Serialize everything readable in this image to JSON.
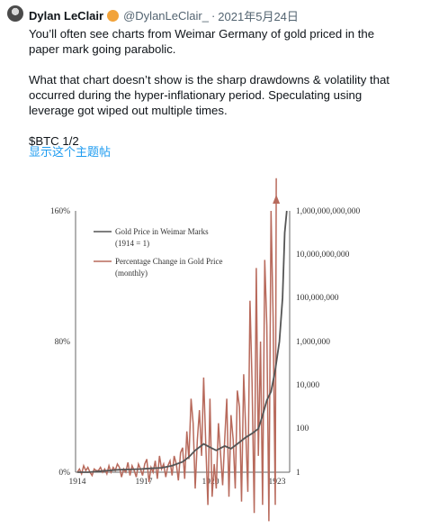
{
  "author": {
    "name": "Dylan LeClair",
    "handle": "@DylanLeClair_",
    "separator": "·",
    "date": "2021年5月24日",
    "badge_color": "#f2a33a"
  },
  "tweet": {
    "paragraphs": [
      "You’ll often see charts from Weimar Germany of gold priced in the paper mark going parabolic.",
      "What that chart doesn’t show is the sharp drawdowns & volatility that occurred during the hyper-inflationary period. Speculating using leverage got wiped out multiple times.",
      "$BTC 1/2"
    ],
    "translate_label": "显示这个主题帖"
  },
  "chart_data": {
    "type": "line",
    "left_axis": {
      "ticks": [
        "0%",
        "80%",
        "160%"
      ],
      "range": [
        0,
        160
      ]
    },
    "right_axis": {
      "scale": "log",
      "ticks": [
        "1",
        "100",
        "10,000",
        "1,000,000",
        "100,000,000",
        "10,000,000,000",
        "1,000,000,000,000"
      ]
    },
    "x_ticks": [
      "1914",
      "1917",
      "1920",
      "1923"
    ],
    "legend_position": "top-left",
    "series": [
      {
        "name": "Gold Price in Weimar Marks",
        "name_line2": "(1914 = 1)",
        "color": "#555555",
        "axis": "right",
        "x": [
          1914,
          1914.5,
          1915,
          1915.5,
          1916,
          1916.5,
          1917,
          1917.5,
          1918,
          1918.5,
          1919,
          1919.3,
          1919.6,
          1920,
          1920.3,
          1920.6,
          1921,
          1921.3,
          1921.6,
          1922,
          1922.3,
          1922.6,
          1922.8,
          1923,
          1923.2,
          1923.4,
          1923.6,
          1923.75,
          1923.85,
          1923.95
        ],
        "values": [
          1,
          1,
          1.1,
          1.2,
          1.3,
          1.35,
          1.4,
          1.5,
          1.6,
          2,
          3,
          5,
          10,
          20,
          14,
          10,
          16,
          12,
          20,
          40,
          60,
          100,
          400,
          2000,
          5000,
          50000,
          1000000,
          100000000,
          100000000000,
          1000000000000
        ]
      },
      {
        "name": "Percentage Change in Gold Price",
        "name_line2": "(monthly)",
        "color": "#b86a5c",
        "axis": "left",
        "x": [
          1914,
          1914.1,
          1914.2,
          1914.3,
          1914.4,
          1914.5,
          1914.6,
          1914.7,
          1914.8,
          1914.9,
          1915,
          1915.1,
          1915.2,
          1915.3,
          1915.4,
          1915.5,
          1915.6,
          1915.7,
          1915.8,
          1915.9,
          1916,
          1916.1,
          1916.2,
          1916.3,
          1916.4,
          1916.5,
          1916.6,
          1916.7,
          1916.8,
          1916.9,
          1917,
          1917.1,
          1917.2,
          1917.3,
          1917.4,
          1917.5,
          1917.6,
          1917.7,
          1917.8,
          1917.9,
          1918,
          1918.1,
          1918.2,
          1918.3,
          1918.4,
          1918.5,
          1918.6,
          1918.7,
          1918.8,
          1918.9,
          1919,
          1919.1,
          1919.2,
          1919.3,
          1919.4,
          1919.5,
          1919.6,
          1919.7,
          1919.8,
          1919.9,
          1920,
          1920.1,
          1920.2,
          1920.3,
          1920.4,
          1920.5,
          1920.6,
          1920.7,
          1920.8,
          1920.9,
          1921,
          1921.1,
          1921.2,
          1921.3,
          1921.4,
          1921.5,
          1921.6,
          1921.7,
          1921.8,
          1921.9,
          1922,
          1922.1,
          1922.2,
          1922.3,
          1922.4,
          1922.5,
          1922.6,
          1922.7,
          1922.8,
          1922.9,
          1923,
          1923.1,
          1923.2,
          1923.3,
          1923.4,
          1923.45
        ],
        "values": [
          0,
          2,
          -1,
          4,
          1,
          3,
          0,
          -2,
          2,
          1,
          1,
          3,
          0,
          2,
          -1,
          4,
          0,
          3,
          1,
          5,
          3,
          -3,
          2,
          0,
          6,
          -2,
          4,
          1,
          -3,
          5,
          2,
          -2,
          5,
          8,
          -6,
          3,
          0,
          7,
          -4,
          10,
          2,
          5,
          -3,
          4,
          7,
          -2,
          10,
          5,
          -5,
          12,
          15,
          -4,
          25,
          8,
          45,
          30,
          -10,
          20,
          38,
          10,
          58,
          18,
          -20,
          45,
          -15,
          5,
          -10,
          30,
          12,
          -8,
          20,
          45,
          -15,
          35,
          20,
          -10,
          50,
          40,
          -18,
          60,
          25,
          -12,
          105,
          55,
          -25,
          125,
          10,
          80,
          -20,
          130,
          90,
          -30,
          160,
          95,
          -20,
          180
        ]
      }
    ]
  }
}
